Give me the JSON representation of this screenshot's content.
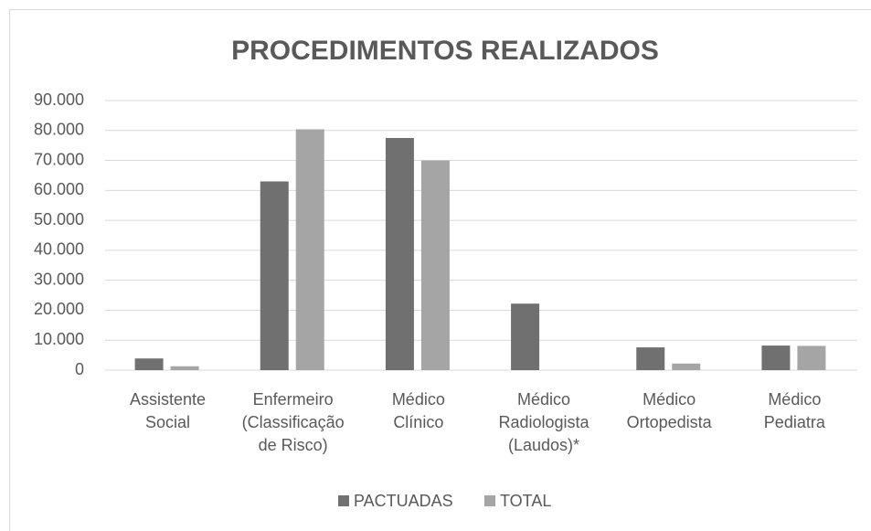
{
  "chart_data": {
    "type": "bar",
    "title": "PROCEDIMENTOS REALIZADOS",
    "categories": [
      "Assistente\nSocial",
      "Enfermeiro\n(Classificação\nde Risco)",
      "Médico\nClínico",
      "Médico\nRadiologista\n(Laudos)*",
      "Médico\nOrtopedista",
      "Médico\nPediatra"
    ],
    "series": [
      {
        "name": "PACTUADAS",
        "color": "#707070",
        "values": [
          3900,
          63000,
          77500,
          22200,
          7600,
          8200
        ]
      },
      {
        "name": "TOTAL",
        "color": "#a5a5a5",
        "values": [
          1300,
          80400,
          70000,
          null,
          2200,
          8100
        ]
      }
    ],
    "ylim": [
      0,
      90000
    ],
    "yticks": [
      0,
      {
        "value": 10000,
        "label": "10.000"
      },
      {
        "value": 20000,
        "label": "20.000"
      },
      {
        "value": 30000,
        "label": "30.000"
      },
      {
        "value": 40000,
        "label": "40.000"
      },
      {
        "value": 50000,
        "label": "50.000"
      },
      {
        "value": 60000,
        "label": "60.000"
      },
      {
        "value": 70000,
        "label": "70.000"
      },
      {
        "value": 80000,
        "label": "80.000"
      },
      {
        "value": 90000,
        "label": "90.000"
      }
    ],
    "grid": true,
    "legend": "bottom"
  }
}
